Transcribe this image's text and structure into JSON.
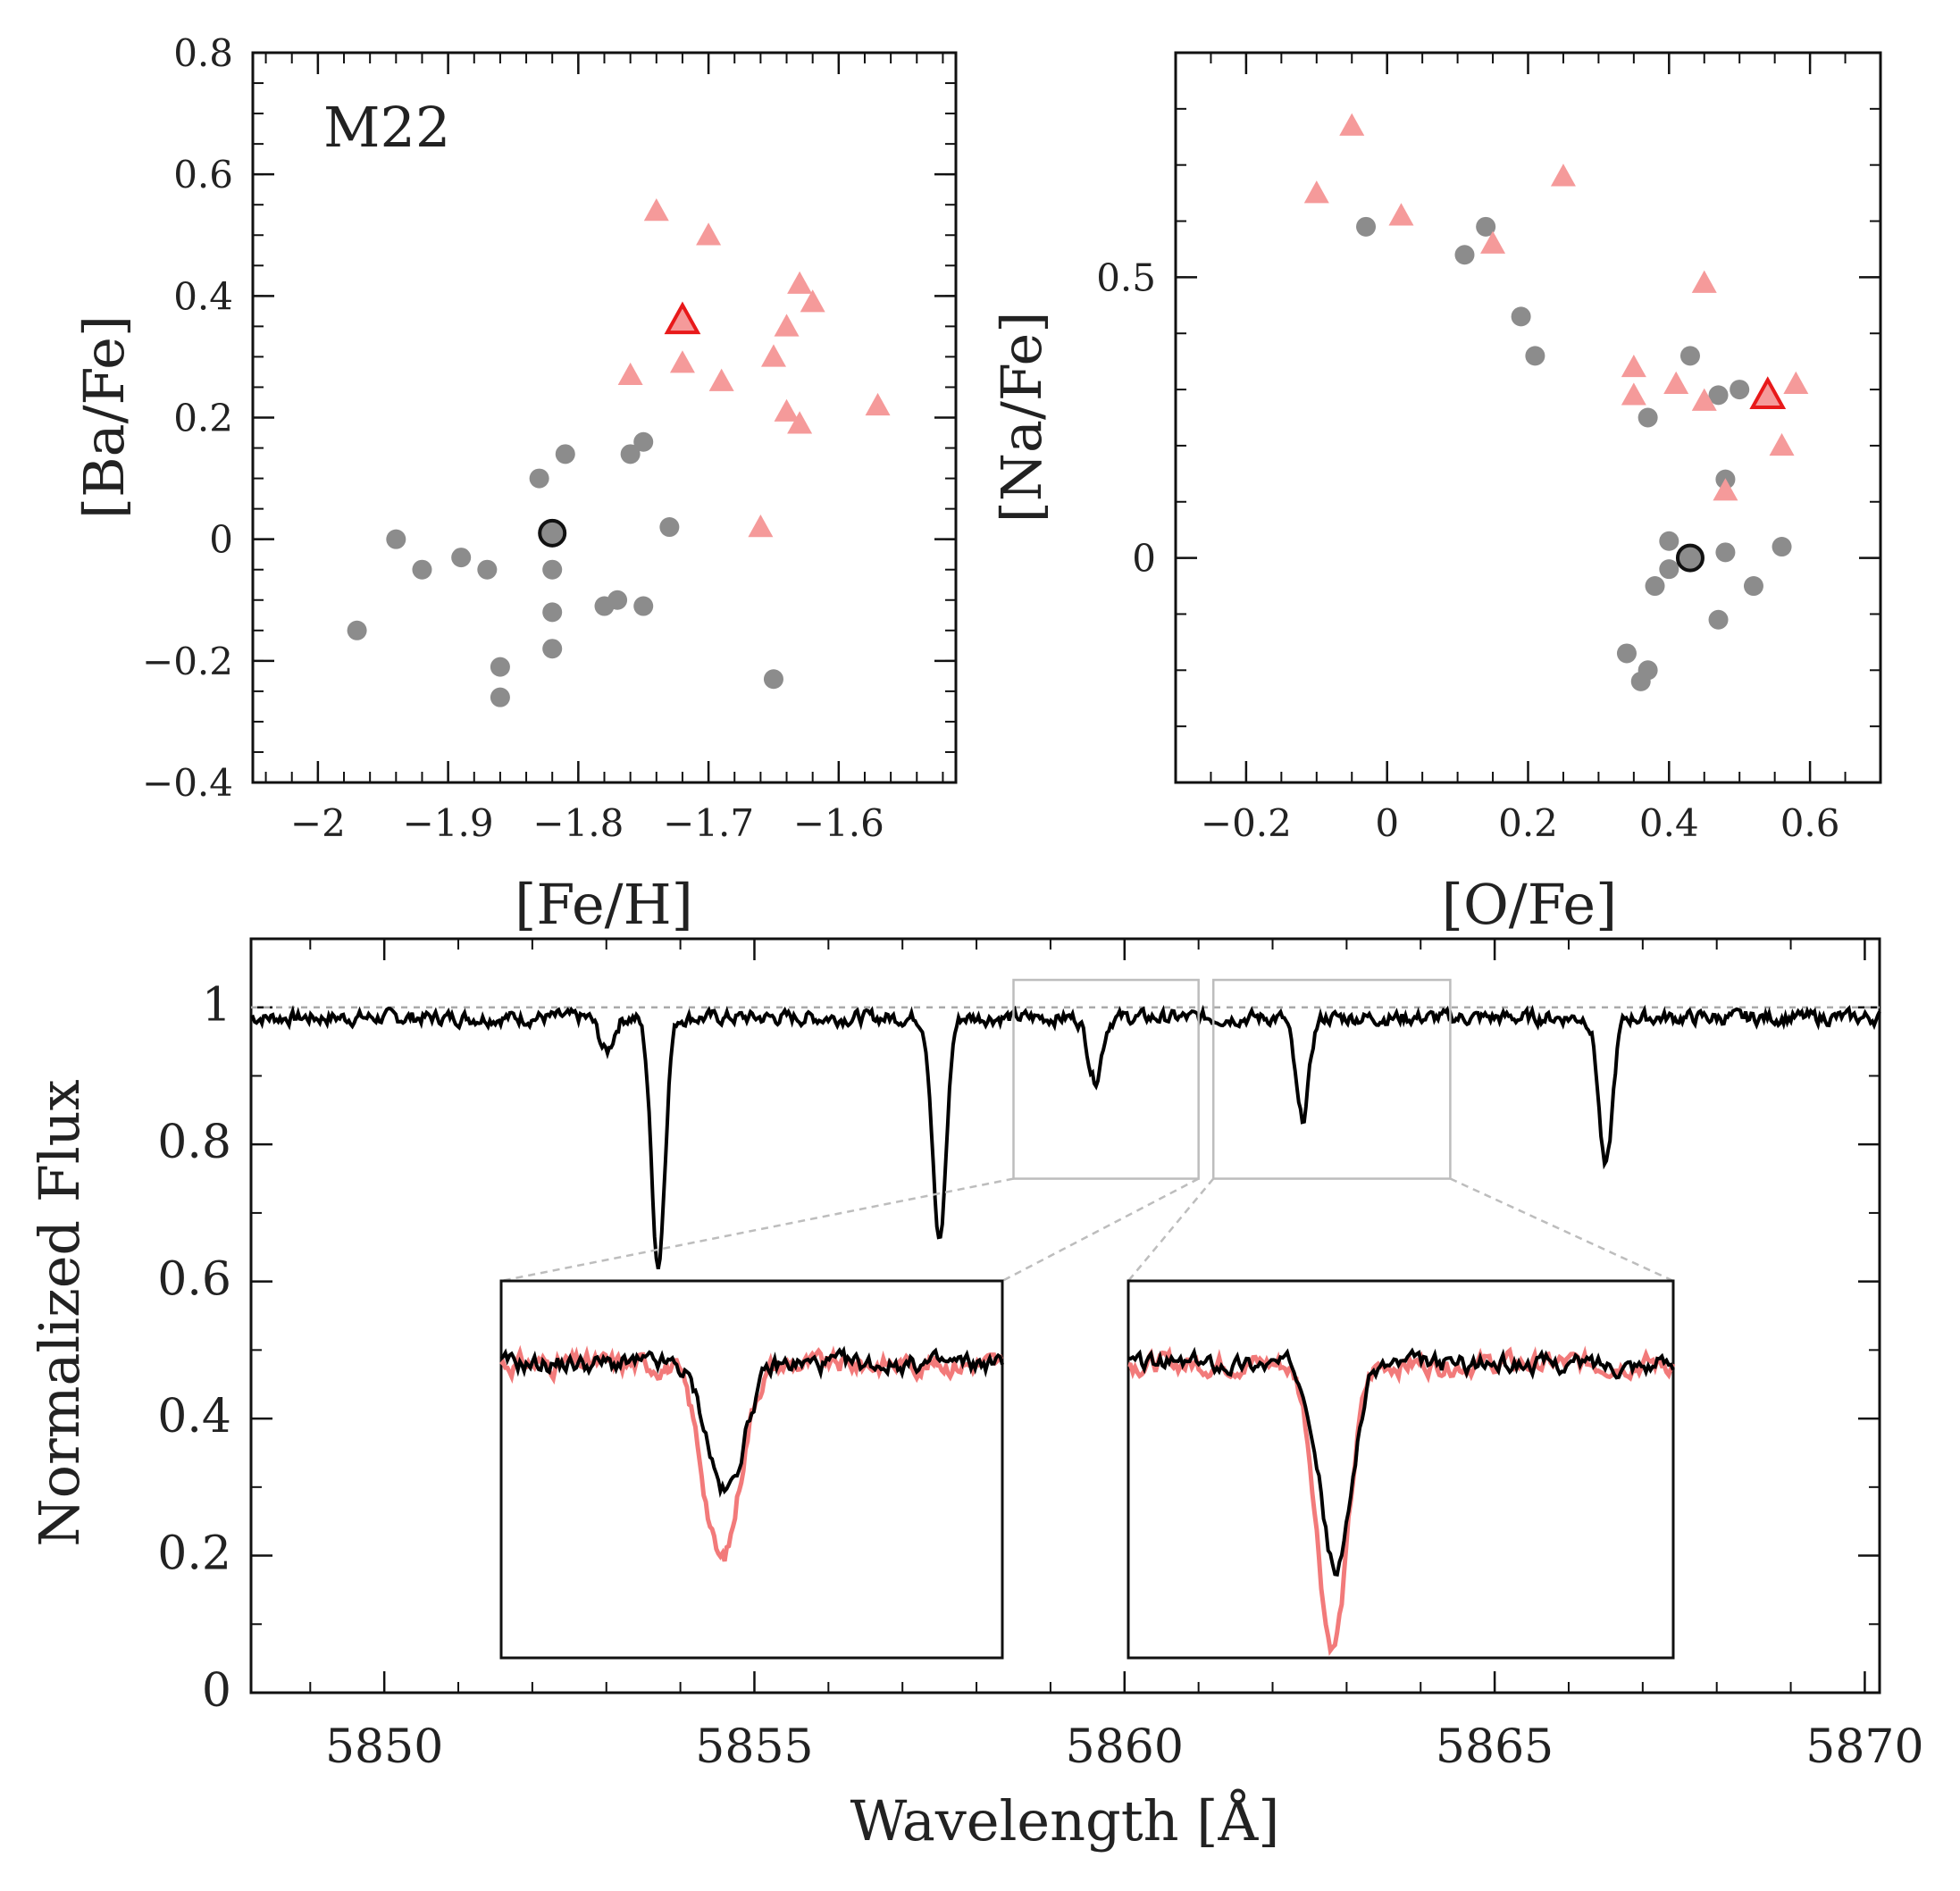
{
  "colors": {
    "grey_point": "#8c8c8c",
    "red_point": "#f59a9a",
    "highlight_red": "#e8191a",
    "spectrum_black": "#000000",
    "spectrum_red": "#f27a7a",
    "box_grey": "#bdbdbd"
  },
  "chart_data": [
    {
      "type": "scatter",
      "name": "ba-vs-fe",
      "label": "M22",
      "xlabel": "[Fe/H]",
      "ylabel": "[Ba/Fe]",
      "xlim": [
        -2.05,
        -1.51
      ],
      "ylim": [
        -0.4,
        0.8
      ],
      "xticks": [
        -2,
        -1.9,
        -1.8,
        -1.7,
        -1.6
      ],
      "xtick_labels": [
        "−2",
        "−1.9",
        "−1.8",
        "−1.7",
        "−1.6"
      ],
      "yticks": [
        -0.4,
        -0.2,
        0,
        0.2,
        0.4,
        0.6,
        0.8
      ],
      "ytick_labels": [
        "−0.4",
        "−0.2",
        "0",
        "0.2",
        "0.4",
        "0.6",
        "0.8"
      ],
      "series": [
        {
          "name": "grey",
          "marker": "circle",
          "points": [
            [
              -1.97,
              -0.15
            ],
            [
              -1.94,
              0.0
            ],
            [
              -1.92,
              -0.05
            ],
            [
              -1.89,
              -0.03
            ],
            [
              -1.87,
              -0.05
            ],
            [
              -1.86,
              -0.21
            ],
            [
              -1.86,
              -0.26
            ],
            [
              -1.83,
              0.1
            ],
            [
              -1.82,
              -0.05
            ],
            [
              -1.82,
              -0.12
            ],
            [
              -1.82,
              -0.18
            ],
            [
              -1.81,
              0.14
            ],
            [
              -1.78,
              -0.11
            ],
            [
              -1.77,
              -0.1
            ],
            [
              -1.76,
              0.14
            ],
            [
              -1.75,
              0.16
            ],
            [
              -1.75,
              -0.11
            ],
            [
              -1.73,
              0.02
            ],
            [
              -1.65,
              -0.23
            ]
          ]
        },
        {
          "name": "red",
          "marker": "triangle",
          "points": [
            [
              -1.74,
              0.54
            ],
            [
              -1.7,
              0.5
            ],
            [
              -1.76,
              0.27
            ],
            [
              -1.72,
              0.29
            ],
            [
              -1.69,
              0.26
            ],
            [
              -1.65,
              0.3
            ],
            [
              -1.64,
              0.35
            ],
            [
              -1.63,
              0.42
            ],
            [
              -1.62,
              0.39
            ],
            [
              -1.64,
              0.21
            ],
            [
              -1.63,
              0.19
            ],
            [
              -1.57,
              0.22
            ],
            [
              -1.66,
              0.02
            ]
          ]
        },
        {
          "name": "highlight-red",
          "marker": "open-triangle",
          "points": [
            [
              -1.72,
              0.36
            ]
          ]
        },
        {
          "name": "highlight-grey",
          "marker": "open-circle",
          "points": [
            [
              -1.82,
              0.01
            ]
          ]
        }
      ]
    },
    {
      "type": "scatter",
      "name": "na-vs-o",
      "xlabel": "[O/Fe]",
      "ylabel": "[Na/Fe]",
      "xlim": [
        -0.3,
        0.7
      ],
      "ylim": [
        -0.4,
        0.9
      ],
      "xticks": [
        -0.2,
        0,
        0.2,
        0.4,
        0.6
      ],
      "xtick_labels": [
        "−0.2",
        "0",
        "0.2",
        "0.4",
        "0.6"
      ],
      "yticks": [
        0,
        0.5
      ],
      "ytick_labels": [
        "0",
        "0.5"
      ],
      "series": [
        {
          "name": "grey",
          "marker": "circle",
          "points": [
            [
              -0.03,
              0.59
            ],
            [
              0.14,
              0.59
            ],
            [
              0.11,
              0.54
            ],
            [
              0.19,
              0.43
            ],
            [
              0.21,
              0.36
            ],
            [
              0.43,
              0.36
            ],
            [
              0.5,
              0.3
            ],
            [
              0.47,
              0.29
            ],
            [
              0.37,
              0.25
            ],
            [
              0.48,
              0.14
            ],
            [
              0.4,
              0.03
            ],
            [
              0.48,
              0.01
            ],
            [
              0.56,
              0.02
            ],
            [
              0.52,
              -0.05
            ],
            [
              0.38,
              -0.05
            ],
            [
              0.4,
              -0.02
            ],
            [
              0.47,
              -0.11
            ],
            [
              0.34,
              -0.17
            ],
            [
              0.37,
              -0.2
            ],
            [
              0.36,
              -0.22
            ]
          ]
        },
        {
          "name": "red",
          "marker": "triangle",
          "points": [
            [
              -0.05,
              0.77
            ],
            [
              -0.1,
              0.65
            ],
            [
              0.02,
              0.61
            ],
            [
              0.25,
              0.68
            ],
            [
              0.15,
              0.56
            ],
            [
              0.45,
              0.49
            ],
            [
              0.35,
              0.34
            ],
            [
              0.41,
              0.31
            ],
            [
              0.35,
              0.29
            ],
            [
              0.45,
              0.28
            ],
            [
              0.58,
              0.31
            ],
            [
              0.56,
              0.2
            ],
            [
              0.48,
              0.12
            ]
          ]
        },
        {
          "name": "highlight-red",
          "marker": "open-triangle",
          "points": [
            [
              0.54,
              0.29
            ]
          ]
        },
        {
          "name": "highlight-grey",
          "marker": "open-circle",
          "points": [
            [
              0.43,
              0.0
            ]
          ]
        }
      ]
    },
    {
      "type": "line",
      "name": "spectrum",
      "xlabel": "Wavelength [Å]",
      "ylabel": "Normalized Flux",
      "xlim": [
        5848.2,
        5870.2
      ],
      "ylim": [
        0,
        1.1
      ],
      "xticks": [
        5850,
        5855,
        5860,
        5865,
        5870
      ],
      "xtick_labels": [
        "5850",
        "5855",
        "5860",
        "5865",
        "5870"
      ],
      "yticks": [
        0,
        0.2,
        0.4,
        0.6,
        0.8,
        1.0
      ],
      "ytick_labels": [
        "0",
        "0.2",
        "0.4",
        "0.6",
        "0.8",
        "1"
      ],
      "reference_line": 1.0,
      "continuum": 0.985,
      "absorption_lines": [
        {
          "center": 5853.0,
          "depth": 0.05
        },
        {
          "center": 5853.7,
          "depth": 0.36
        },
        {
          "center": 5857.5,
          "depth": 0.33
        },
        {
          "center": 5859.6,
          "depth": 0.09
        },
        {
          "center": 5862.4,
          "depth": 0.15
        },
        {
          "center": 5866.5,
          "depth": 0.22
        }
      ],
      "zoom_windows": [
        [
          5858.5,
          5861.0
        ],
        [
          5861.2,
          5864.4
        ]
      ],
      "zoom_flux_floor": 0.75
    }
  ],
  "insets": [
    {
      "name": "inset-left",
      "line_center": 5859.6,
      "window": [
        5858.5,
        5861.0
      ],
      "black_depth": 0.34,
      "red_depth": 0.52,
      "ylim": [
        0.0,
        1.0
      ]
    },
    {
      "name": "inset-right",
      "line_center": 5862.4,
      "window": [
        5861.2,
        5864.4
      ],
      "black_depth": 0.55,
      "red_depth": 0.75,
      "ylim": [
        0.0,
        1.0
      ]
    }
  ]
}
